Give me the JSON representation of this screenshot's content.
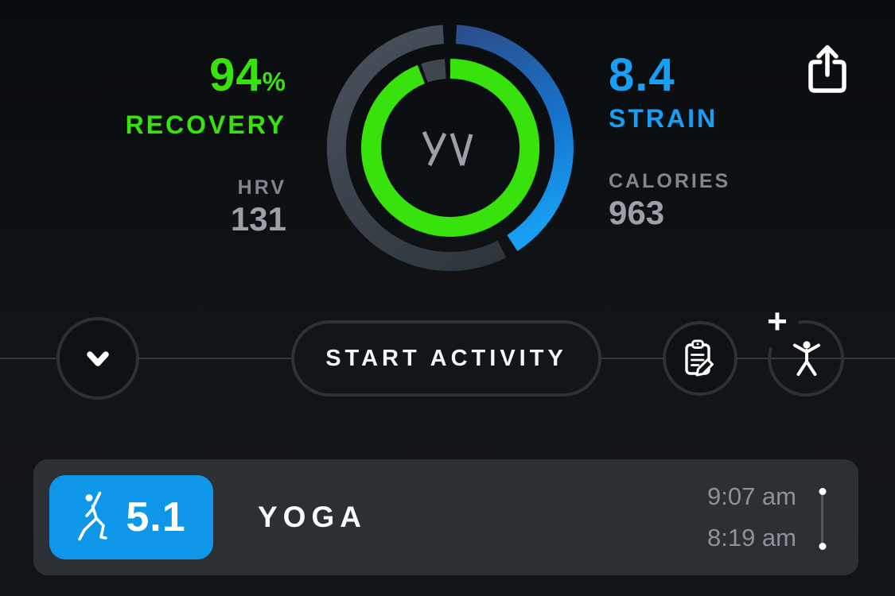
{
  "overview": {
    "recovery": {
      "value": "94",
      "unit": "%",
      "label": "RECOVERY",
      "metric_label": "HRV",
      "metric_value": "131",
      "color": "#38e20d"
    },
    "strain": {
      "value": "8.4",
      "label": "STRAIN",
      "metric_label": "CALORIES",
      "metric_value": "963",
      "color": "#189ef3"
    }
  },
  "gauge": {
    "recovery_percent": 94,
    "strain_score": 8.4,
    "strain_max": 21,
    "logo": "whoop-logo"
  },
  "action_bar": {
    "start_button_label": "START ACTIVITY",
    "add_activity_plus": "+"
  },
  "activity_card": {
    "score": "5.1",
    "name": "YOGA",
    "end_time": "9:07 am",
    "start_time": "8:19 am",
    "sport": "yoga",
    "badge_color": "#0e97e9"
  },
  "colors": {
    "recovery_green": "#38e20d",
    "strain_blue": "#189ef3",
    "badge_blue": "#0e97e9",
    "card_bg": "#2c2f33",
    "label_gray": "#80868d",
    "value_gray": "#9aa1a8"
  }
}
